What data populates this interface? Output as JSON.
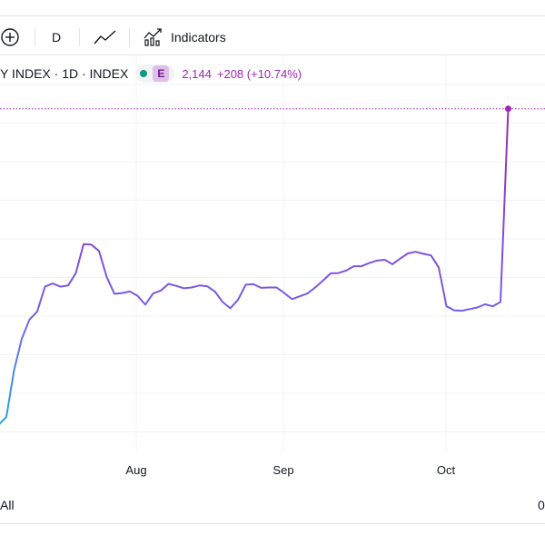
{
  "toolbar": {
    "add_icon": "plus-circle-icon",
    "interval": "D",
    "chart_style_icon": "line-chart-icon",
    "indicators_icon": "indicators-icon",
    "indicators_label": "Indicators"
  },
  "legend": {
    "title": "Y INDEX · 1D · INDEX",
    "earnings_badge": "E",
    "last_value": "2,144",
    "change": "+208 (+10.74%)"
  },
  "footer": {
    "range_label": "All",
    "right_label": "0"
  },
  "colors": {
    "line_start": "#26a6df",
    "line_end": "#9c27b0",
    "grid": "#f0f3fa",
    "last_price_line": "#9c27b0",
    "status_dot": "#089981"
  },
  "chart_data": {
    "type": "line",
    "title": "Y INDEX · 1D · INDEX",
    "xlabel": "",
    "ylabel": "",
    "x_ticks": [
      "Aug",
      "Sep",
      "Oct"
    ],
    "last_value": 2144,
    "ylim": [
      1350,
      2200
    ],
    "grid": true,
    "series": [
      {
        "values": [
          1359,
          1355,
          1375,
          1492,
          1570,
          1618,
          1638,
          1700,
          1708,
          1700,
          1703,
          1734,
          1806,
          1805,
          1789,
          1724,
          1682,
          1684,
          1688,
          1677,
          1655,
          1683,
          1690,
          1707,
          1702,
          1696,
          1698,
          1703,
          1701,
          1688,
          1662,
          1646,
          1667,
          1705,
          1706,
          1697,
          1698,
          1698,
          1684,
          1669,
          1676,
          1683,
          1698,
          1715,
          1733,
          1734,
          1740,
          1751,
          1751,
          1759,
          1765,
          1767,
          1756,
          1770,
          1783,
          1787,
          1782,
          1778,
          1748,
          1651,
          1641,
          1640,
          1644,
          1648,
          1656,
          1651,
          1662,
          2144
        ]
      }
    ]
  }
}
